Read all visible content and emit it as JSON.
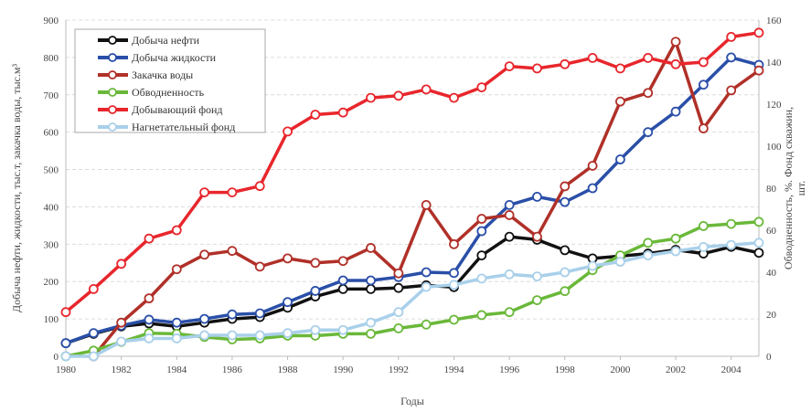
{
  "chart_data": {
    "type": "line",
    "title": "",
    "xlabel": "Годы",
    "ylabel": "Добыча нефти, жидкости, тыс.т, закачка воды, тыс.м³",
    "ylabel_right": [
      "Обводненность, %. Фонд скважин,",
      "шт."
    ],
    "xlim": [
      1980,
      2005
    ],
    "ylim": [
      0,
      900
    ],
    "ylim_right": [
      0,
      160
    ],
    "x_ticks": [
      "1980",
      "1982",
      "1984",
      "1986",
      "1988",
      "1990",
      "1992",
      "1994",
      "1996",
      "1998",
      "2000",
      "2002",
      "2004"
    ],
    "y_ticks": [
      "0",
      "100",
      "200",
      "300",
      "400",
      "500",
      "600",
      "700",
      "800",
      "900"
    ],
    "y_ticks_right": [
      "0",
      "20",
      "40",
      "60",
      "80",
      "100",
      "120",
      "140",
      "160"
    ],
    "grid": true,
    "legend_position": "top-left",
    "x": [
      1980,
      1981,
      1982,
      1983,
      1984,
      1985,
      1986,
      1987,
      1988,
      1989,
      1990,
      1991,
      1992,
      1993,
      1994,
      1995,
      1996,
      1997,
      1998,
      1999,
      2000,
      2001,
      2002,
      2003,
      2004,
      2005
    ],
    "series": [
      {
        "name": "Добыча нефти",
        "axis": "left",
        "color": "#111111",
        "values": [
          35,
          60,
          80,
          88,
          80,
          90,
          100,
          105,
          130,
          160,
          180,
          180,
          183,
          190,
          185,
          270,
          320,
          312,
          284,
          262,
          268,
          275,
          285,
          275,
          293,
          277
        ]
      },
      {
        "name": "Добыча жидкости",
        "axis": "left",
        "color": "#2a4fa8",
        "values": [
          35,
          62,
          82,
          98,
          90,
          100,
          112,
          115,
          145,
          175,
          203,
          203,
          212,
          225,
          223,
          335,
          405,
          427,
          413,
          450,
          527,
          600,
          655,
          727,
          800,
          780
        ]
      },
      {
        "name": "Закачка воды",
        "axis": "left",
        "color": "#b03028",
        "values": [
          null,
          0,
          90,
          155,
          233,
          272,
          282,
          240,
          262,
          250,
          255,
          290,
          222,
          405,
          300,
          368,
          378,
          320,
          455,
          510,
          682,
          705,
          842,
          610,
          712,
          765
        ]
      },
      {
        "name": "Обводненность",
        "axis": "right",
        "color": "#6ab83a",
        "values": [
          0,
          2.7,
          6.8,
          11,
          10.7,
          9.2,
          8,
          8.5,
          9.8,
          9.8,
          10.7,
          10.7,
          13.3,
          15.1,
          17.4,
          19.6,
          21,
          26.7,
          31,
          41,
          48,
          54,
          56,
          62,
          63,
          64
        ]
      },
      {
        "name": "Добывающий фонд",
        "axis": "right",
        "color": "#e8262c",
        "values": [
          21,
          32,
          44,
          56,
          60,
          78,
          78,
          81,
          107,
          115,
          116,
          123,
          124,
          127,
          123,
          128,
          138,
          137,
          139,
          142,
          137,
          142,
          139,
          140,
          152,
          154
        ]
      },
      {
        "name": "Нагнетательный фонд",
        "axis": "right",
        "color": "#a9d0ea",
        "values": [
          0,
          0,
          7,
          8.5,
          8.5,
          10,
          10,
          10,
          11,
          12.5,
          12.5,
          16,
          21,
          33,
          34,
          37,
          39,
          38,
          40,
          43,
          45,
          48,
          50,
          52,
          53,
          54
        ]
      }
    ]
  }
}
